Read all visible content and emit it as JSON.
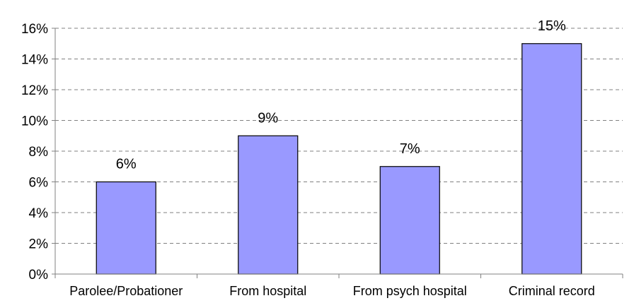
{
  "chart_data": {
    "type": "bar",
    "title": "",
    "xlabel": "",
    "ylabel": "",
    "categories": [
      "Parolee/Probationer",
      "From hospital",
      "From psych hospital",
      "Criminal record"
    ],
    "values": [
      6,
      9,
      7,
      15
    ],
    "data_labels": [
      "6%",
      "9%",
      "7%",
      "15%"
    ],
    "ylim": [
      0,
      16
    ],
    "y_ticks": [
      0,
      2,
      4,
      6,
      8,
      10,
      12,
      14,
      16
    ],
    "y_tick_labels": [
      "0%",
      "2%",
      "4%",
      "6%",
      "8%",
      "10%",
      "12%",
      "14%",
      "16%"
    ],
    "grid": true,
    "grid_style": "dashed",
    "legend": "none",
    "bar_color": "#9999ff",
    "bar_edge_color": "#000000"
  }
}
